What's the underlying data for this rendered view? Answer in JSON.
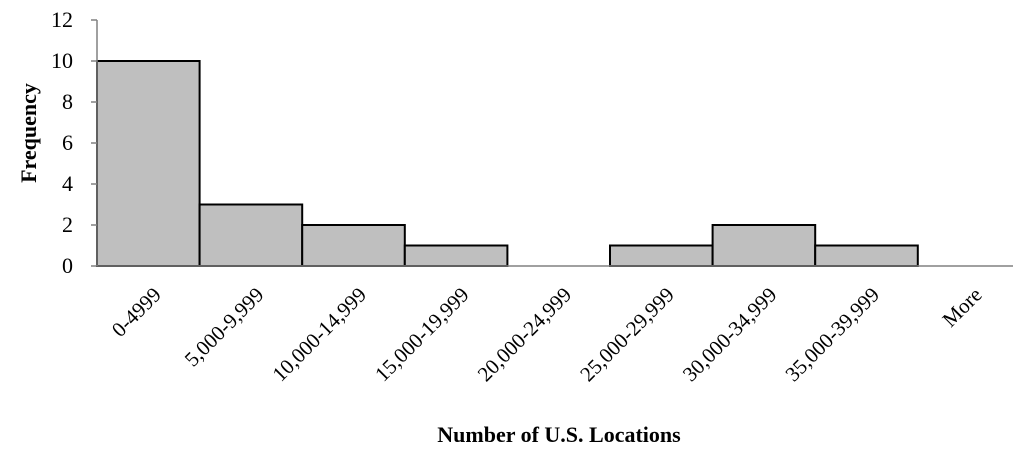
{
  "chart_data": {
    "type": "bar",
    "title": "",
    "xlabel": "Number of U.S. Locations",
    "ylabel": "Frequency",
    "categories": [
      "0-4999",
      "5,000-9,999",
      "10,000-14,999",
      "15,000-19,999",
      "20,000-24,999",
      "25,000-29,999",
      "30,000-34,999",
      "35,000-39,999",
      "More"
    ],
    "values": [
      10,
      3,
      2,
      1,
      0,
      1,
      2,
      1,
      0
    ],
    "ylim": [
      0,
      12
    ],
    "yticks": [
      "0",
      "2",
      "4",
      "6",
      "8",
      "10",
      "12"
    ],
    "grid": false,
    "legend": "none",
    "colors": {
      "bar_fill": "#bfbfbf",
      "bar_stroke": "#000000",
      "axis": "#808080"
    }
  }
}
